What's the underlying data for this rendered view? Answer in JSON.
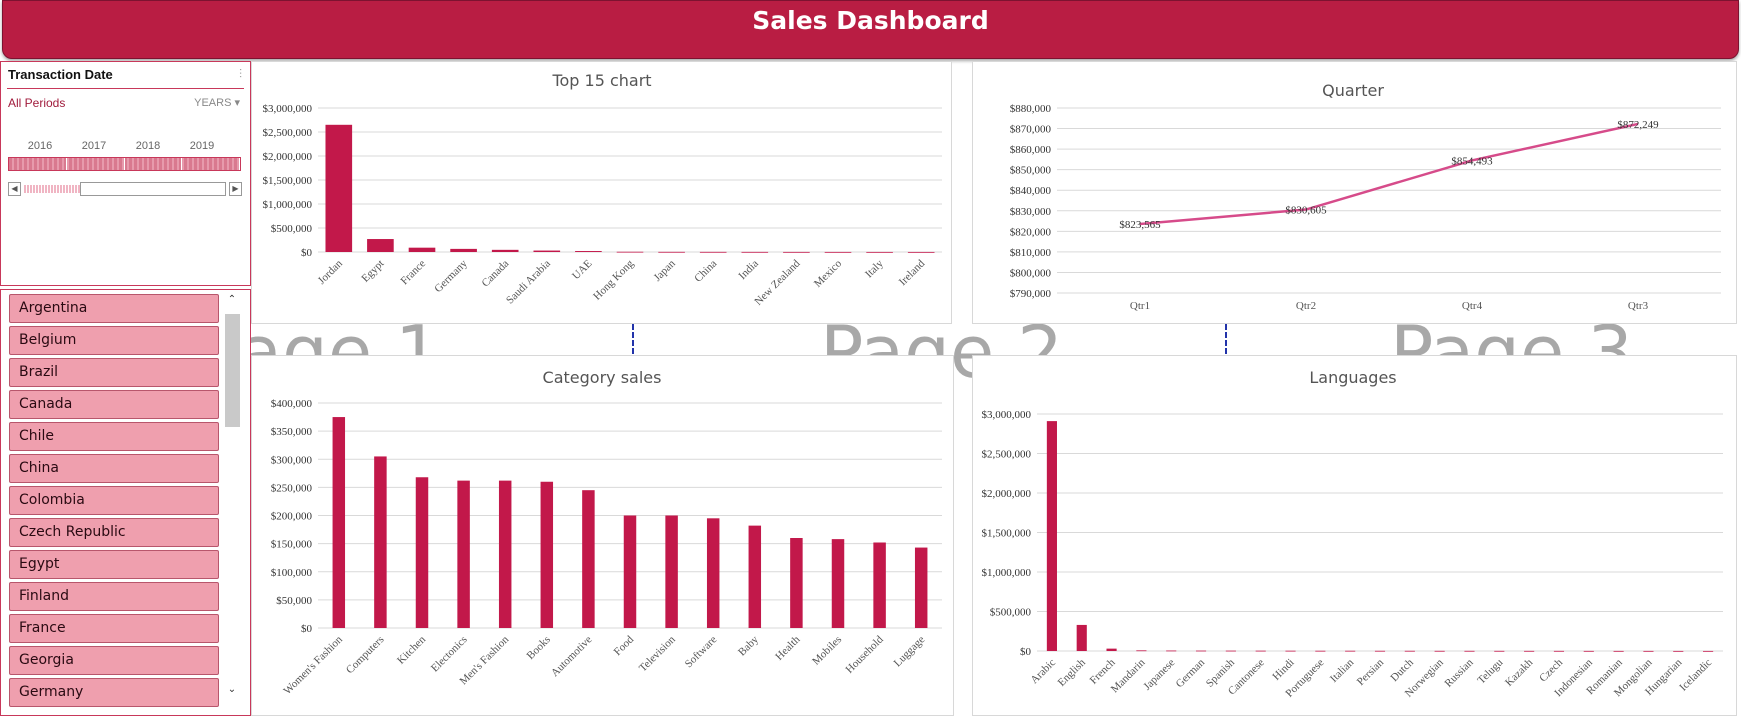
{
  "header": {
    "title": "Sales Dashboard"
  },
  "timeline": {
    "title": "Transaction Date",
    "period_label": "All Periods",
    "level_label": "YEARS",
    "years": [
      "2016",
      "2017",
      "2018",
      "2019"
    ]
  },
  "slicer": {
    "items": [
      "Argentina",
      "Belgium",
      "Brazil",
      "Canada",
      "Chile",
      "China",
      "Colombia",
      "Czech Republic",
      "Egypt",
      "Finland",
      "France",
      "Georgia",
      "Germany"
    ]
  },
  "watermarks": {
    "page1": "age 1",
    "page2": "Page 2",
    "page3": "Page 3"
  },
  "colors": {
    "brand": "#b91d43",
    "bar": "#c2184a",
    "line": "#d64b8a",
    "slicer_item": "#ef9fae"
  },
  "chart_data": [
    {
      "id": "top15",
      "type": "bar",
      "title": "Top 15 chart",
      "categories": [
        "Jordan",
        "Egypt",
        "France",
        "Germany",
        "Canada",
        "Saudi Arabia",
        "UAE",
        "Hong Kong",
        "Japan",
        "China",
        "India",
        "New Zealand",
        "Mexico",
        "Italy",
        "Ireland"
      ],
      "values": [
        2650000,
        270000,
        90000,
        65000,
        45000,
        30000,
        20000,
        5000,
        3000,
        2500,
        2000,
        1500,
        1200,
        1000,
        800
      ],
      "ylim": [
        0,
        3000000
      ],
      "yticks": [
        0,
        500000,
        1000000,
        1500000,
        2000000,
        2500000,
        3000000
      ],
      "ytick_labels": [
        "$0",
        "$500,000",
        "$1,000,000",
        "$1,500,000",
        "$2,000,000",
        "$2,500,000",
        "$3,000,000"
      ],
      "grid": true
    },
    {
      "id": "quarter",
      "type": "line",
      "title": "Quarter",
      "categories": [
        "Qtr1",
        "Qtr2",
        "Qtr4",
        "Qtr3"
      ],
      "values": [
        823565,
        830605,
        854493,
        872249
      ],
      "data_labels": [
        "$823,565",
        "$830,605",
        "$854,493",
        "$872,249"
      ],
      "ylim": [
        790000,
        880000
      ],
      "yticks": [
        790000,
        800000,
        810000,
        820000,
        830000,
        840000,
        850000,
        860000,
        870000,
        880000
      ],
      "ytick_labels": [
        "$790,000",
        "$800,000",
        "$810,000",
        "$820,000",
        "$830,000",
        "$840,000",
        "$850,000",
        "$860,000",
        "$870,000",
        "$880,000"
      ],
      "grid": true
    },
    {
      "id": "category",
      "type": "bar",
      "title": "Category sales",
      "categories": [
        "Women's Fashion",
        "Computers",
        "Kitchen",
        "Electonics",
        "Men's Fashion",
        "Books",
        "Automotive",
        "Food",
        "Television",
        "Software",
        "Baby",
        "Health",
        "Mobiles",
        "Household",
        "Luggage"
      ],
      "values": [
        375000,
        305000,
        268000,
        262000,
        262000,
        260000,
        245000,
        200000,
        200000,
        195000,
        182000,
        160000,
        158000,
        152000,
        143000
      ],
      "ylim": [
        0,
        400000
      ],
      "yticks": [
        0,
        50000,
        100000,
        150000,
        200000,
        250000,
        300000,
        350000,
        400000
      ],
      "ytick_labels": [
        "$0",
        "$50,000",
        "$100,000",
        "$150,000",
        "$200,000",
        "$250,000",
        "$300,000",
        "$350,000",
        "$400,000"
      ],
      "grid": true
    },
    {
      "id": "languages",
      "type": "bar",
      "title": "Languages",
      "categories": [
        "Arabic",
        "English",
        "French",
        "Mandarin",
        "Japanese",
        "German",
        "Spanish",
        "Cantonese",
        "Hindi",
        "Portuguese",
        "Italian",
        "Persian",
        "Dutch",
        "Norwegian",
        "Russian",
        "Telugu",
        "Kazakh",
        "Czech",
        "Indonesian",
        "Romanian",
        "Mongolian",
        "Hungarian",
        "Icelandic"
      ],
      "values": [
        2910000,
        330000,
        30000,
        8000,
        6000,
        5000,
        4500,
        4000,
        3500,
        3000,
        3000,
        2500,
        2500,
        2000,
        2000,
        1800,
        1500,
        1500,
        1200,
        1000,
        1000,
        800,
        700
      ],
      "ylim": [
        0,
        3000000
      ],
      "yticks": [
        0,
        500000,
        1000000,
        1500000,
        2000000,
        2500000,
        3000000
      ],
      "ytick_labels": [
        "$0",
        "$500,000",
        "$1,000,000",
        "$1,500,000",
        "$2,000,000",
        "$2,500,000",
        "$3,000,000"
      ],
      "grid": true
    }
  ]
}
